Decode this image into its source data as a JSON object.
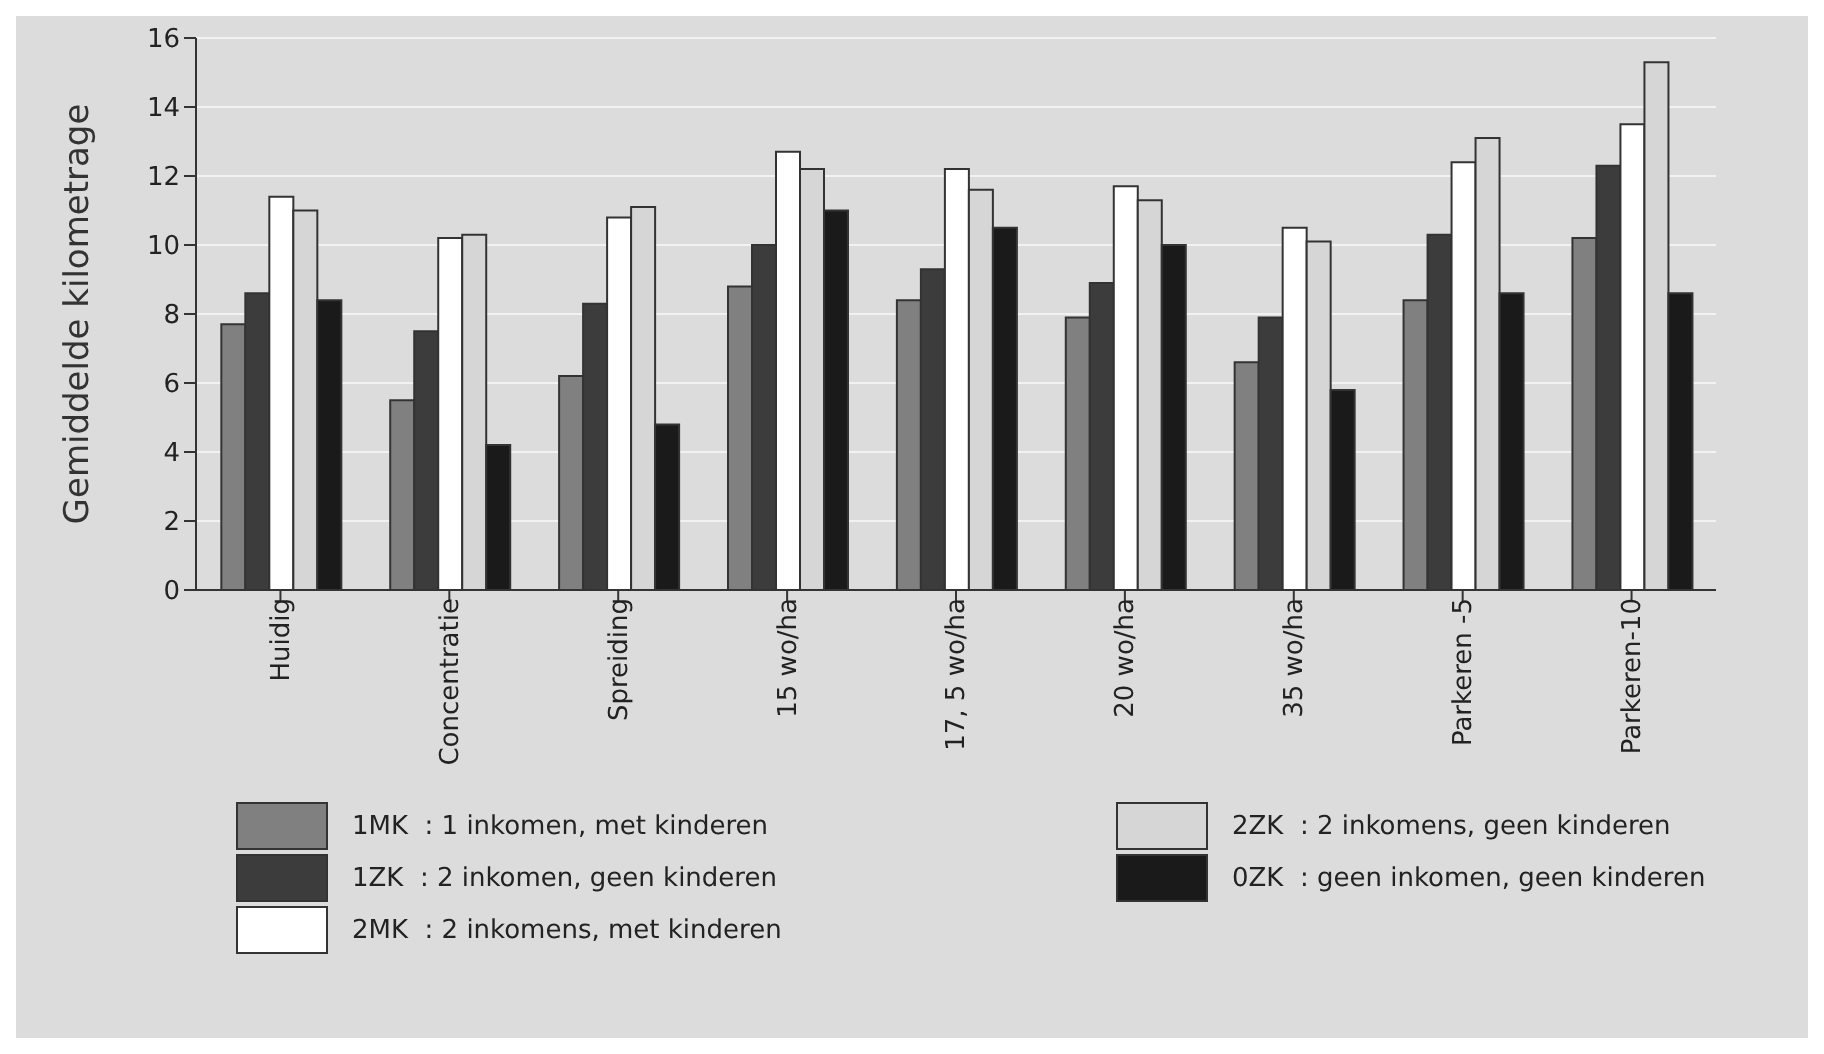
{
  "chart_data": {
    "type": "bar",
    "ylabel": "Gemiddelde kilometrage",
    "categories": [
      "Huidig",
      "Concentratie",
      "Spreiding",
      "15 wo/ha",
      "17, 5 wo/ha",
      "20 wo/ha",
      "35 wo/ha",
      "Parkeren -5",
      "Parkeren-10"
    ],
    "series": [
      {
        "name": "1MK  : 1 inkomen, met kinderen",
        "color": "#808080",
        "values": [
          7.7,
          5.5,
          6.2,
          8.8,
          8.4,
          7.9,
          6.6,
          8.4,
          10.2
        ]
      },
      {
        "name": "1ZK  : 2 inkomen, geen kinderen",
        "color": "#3c3c3c",
        "values": [
          8.6,
          7.5,
          8.3,
          10.0,
          9.3,
          8.9,
          7.9,
          10.3,
          12.3
        ]
      },
      {
        "name": "2MK  : 2 inkomens, met kinderen",
        "color": "#ffffff",
        "values": [
          11.4,
          10.2,
          10.8,
          12.7,
          12.2,
          11.7,
          10.5,
          12.4,
          13.5
        ]
      },
      {
        "name": "2ZK  : 2 inkomens, geen kinderen",
        "color": "#d6d6d6",
        "values": [
          11.0,
          10.3,
          11.1,
          12.2,
          11.6,
          11.3,
          10.1,
          13.1,
          15.3
        ]
      },
      {
        "name": "0ZK  : geen inkomen, geen kinderen",
        "color": "#1a1a1a",
        "values": [
          8.4,
          4.2,
          4.8,
          11.0,
          10.5,
          10.0,
          5.8,
          8.6,
          8.6
        ]
      }
    ],
    "ylim": [
      0,
      16
    ],
    "yticks": [
      0,
      2,
      4,
      6,
      8,
      10,
      12,
      14,
      16
    ],
    "grid": "y",
    "legend": "bottom"
  }
}
